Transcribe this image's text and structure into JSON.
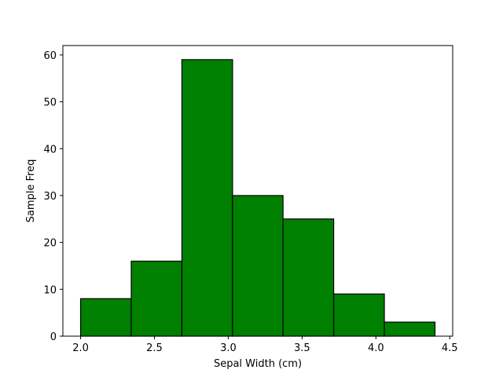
{
  "chart_data": {
    "type": "bar",
    "subtype": "histogram",
    "title": "",
    "xlabel": "Sepal Width (cm)",
    "ylabel": "Sample Freq",
    "bin_edges": [
      2.0,
      2.343,
      2.686,
      3.029,
      3.371,
      3.714,
      4.057,
      4.4
    ],
    "values": [
      8,
      16,
      59,
      30,
      25,
      9,
      3
    ],
    "xlim": [
      1.88,
      4.52
    ],
    "ylim": [
      0,
      62
    ],
    "xticks": [
      2.0,
      2.5,
      3.0,
      3.5,
      4.0,
      4.5
    ],
    "xtick_labels": [
      "2.0",
      "2.5",
      "3.0",
      "3.5",
      "4.0",
      "4.5"
    ],
    "yticks": [
      0,
      10,
      20,
      30,
      40,
      50,
      60
    ],
    "ytick_labels": [
      "0",
      "10",
      "20",
      "30",
      "40",
      "50",
      "60"
    ],
    "grid": false,
    "bar_color": "#008000",
    "edge_color": "#000000"
  }
}
